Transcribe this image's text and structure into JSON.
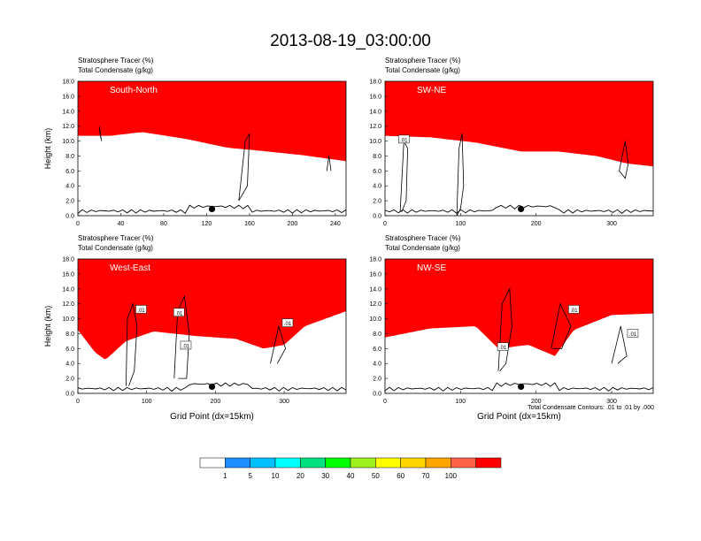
{
  "title": "2013-08-19_03:00:00",
  "colors": {
    "bins": [
      "#ffffff",
      "#1e8fff",
      "#00bfff",
      "#00ffff",
      "#00e07f",
      "#00ff00",
      "#a0f020",
      "#ffff00",
      "#ffd700",
      "#ffa500",
      "#ff6347",
      "#ff0000"
    ],
    "contour": "#000000",
    "terrain": "#000000"
  },
  "colorbar": {
    "labels": [
      "1",
      "5",
      "10",
      "20",
      "30",
      "40",
      "50",
      "60",
      "70",
      "100"
    ]
  },
  "contour_note": "Total Condensate Contours: .01 to .01 by .000",
  "contour_label": ".01",
  "chart_data": [
    {
      "type": "heatmap",
      "panel_label": "South-North",
      "field_title": "Stratosphere Tracer   (%)",
      "contour_title": "Total Condensate   (g/kg)",
      "ylabel": "Height (km)",
      "xlabel": "",
      "ylim": [
        0,
        18
      ],
      "xlim": [
        0,
        250
      ],
      "yticks": [
        "0.0",
        "2.0",
        "4.0",
        "6.0",
        "8.0",
        "10.0",
        "12.0",
        "14.0",
        "16.0",
        "18.0"
      ],
      "xticks": [
        "0",
        "40",
        "80",
        "120",
        "160",
        "200",
        "240"
      ],
      "tracer_base_km": [
        [
          0,
          14.2
        ],
        [
          30,
          14.2
        ],
        [
          60,
          14.7
        ],
        [
          100,
          13.8
        ],
        [
          140,
          12.6
        ],
        [
          170,
          12.2
        ],
        [
          210,
          11.6
        ],
        [
          250,
          10.8
        ]
      ],
      "marker_x": 125,
      "contours": [
        [
          [
            20,
            12
          ],
          [
            22,
            10
          ],
          [
            20,
            11.5
          ]
        ],
        [
          [
            150,
            2
          ],
          [
            156,
            10
          ],
          [
            160,
            11
          ],
          [
            158,
            4
          ],
          [
            154,
            3
          ],
          [
            150,
            2
          ]
        ],
        [
          [
            232,
            6
          ],
          [
            234,
            8
          ],
          [
            236,
            6
          ]
        ]
      ],
      "contour_labels": []
    },
    {
      "type": "heatmap",
      "panel_label": "SW-NE",
      "field_title": "Stratosphere Tracer   (%)",
      "contour_title": "Total Condensate   (g/kg)",
      "ylabel": "",
      "xlabel": "",
      "ylim": [
        0,
        18
      ],
      "xlim": [
        0,
        355
      ],
      "yticks": [
        "0.0",
        "2.0",
        "4.0",
        "6.0",
        "8.0",
        "10.0",
        "12.0",
        "14.0",
        "16.0",
        "18.0"
      ],
      "xticks": [
        "0",
        "100",
        "200",
        "300"
      ],
      "tracer_base_km": [
        [
          0,
          14.2
        ],
        [
          60,
          14
        ],
        [
          120,
          13.3
        ],
        [
          180,
          12.1
        ],
        [
          230,
          12.1
        ],
        [
          280,
          11.5
        ],
        [
          320,
          10.5
        ],
        [
          355,
          10.1
        ]
      ],
      "marker_x": 180,
      "contours": [
        [
          [
            20,
            0.5
          ],
          [
            25,
            10
          ],
          [
            30,
            9
          ],
          [
            28,
            2
          ],
          [
            22,
            0.5
          ]
        ],
        [
          [
            95,
            0
          ],
          [
            98,
            9
          ],
          [
            102,
            11
          ],
          [
            104,
            4
          ],
          [
            100,
            1
          ],
          [
            95,
            0
          ]
        ],
        [
          [
            310,
            6
          ],
          [
            318,
            10
          ],
          [
            322,
            7
          ],
          [
            318,
            5
          ],
          [
            310,
            6
          ]
        ]
      ],
      "contour_labels": [
        {
          "x": 25,
          "y": 10.2
        }
      ]
    },
    {
      "type": "heatmap",
      "panel_label": "West-East",
      "field_title": "Stratosphere Tracer   (%)",
      "contour_title": "Total Condensate   (g/kg)",
      "ylabel": "Height (km)",
      "xlabel": "Grid Point (dx=15km)",
      "ylim": [
        0,
        18
      ],
      "xlim": [
        0,
        390
      ],
      "yticks": [
        "0.0",
        "2.0",
        "4.0",
        "6.0",
        "8.0",
        "10.0",
        "12.0",
        "14.0",
        "16.0",
        "18.0"
      ],
      "xticks": [
        "0",
        "100",
        "200",
        "300"
      ],
      "tracer_base_km": [
        [
          0,
          12
        ],
        [
          25,
          9
        ],
        [
          40,
          8
        ],
        [
          70,
          10.5
        ],
        [
          110,
          11.8
        ],
        [
          170,
          11.2
        ],
        [
          230,
          10.8
        ],
        [
          270,
          9.5
        ],
        [
          300,
          10
        ],
        [
          330,
          12.5
        ],
        [
          390,
          14.5
        ]
      ],
      "marker_x": 195,
      "contours": [
        [
          [
            70,
            1
          ],
          [
            72,
            10
          ],
          [
            80,
            12
          ],
          [
            86,
            9
          ],
          [
            82,
            3
          ],
          [
            74,
            1
          ]
        ],
        [
          [
            140,
            2
          ],
          [
            145,
            11
          ],
          [
            155,
            13
          ],
          [
            162,
            8
          ],
          [
            158,
            2
          ],
          [
            146,
            2
          ]
        ],
        [
          [
            280,
            4
          ],
          [
            292,
            9
          ],
          [
            302,
            6
          ],
          [
            290,
            4
          ]
        ]
      ],
      "contour_labels": [
        {
          "x": 92,
          "y": 11.2
        },
        {
          "x": 147,
          "y": 10.8
        },
        {
          "x": 157,
          "y": 6.4
        },
        {
          "x": 305,
          "y": 9.4
        }
      ]
    },
    {
      "type": "heatmap",
      "panel_label": "NW-SE",
      "field_title": "Stratosphere Tracer   (%)",
      "contour_title": "Total Condensate   (g/kg)",
      "ylabel": "",
      "xlabel": "Grid Point (dx=15km)",
      "ylim": [
        0,
        18
      ],
      "xlim": [
        0,
        355
      ],
      "yticks": [
        "0.0",
        "2.0",
        "4.0",
        "6.0",
        "8.0",
        "10.0",
        "12.0",
        "14.0",
        "16.0",
        "18.0"
      ],
      "xticks": [
        "0",
        "100",
        "200",
        "300"
      ],
      "tracer_base_km": [
        [
          0,
          11
        ],
        [
          60,
          12.2
        ],
        [
          120,
          12.5
        ],
        [
          150,
          9.5
        ],
        [
          190,
          10
        ],
        [
          225,
          8.5
        ],
        [
          250,
          12
        ],
        [
          300,
          14
        ],
        [
          355,
          14.2
        ]
      ],
      "marker_x": 180,
      "contours": [
        [
          [
            150,
            3
          ],
          [
            155,
            12
          ],
          [
            165,
            14
          ],
          [
            168,
            9
          ],
          [
            160,
            4
          ],
          [
            152,
            3
          ]
        ],
        [
          [
            220,
            6
          ],
          [
            232,
            12
          ],
          [
            246,
            9
          ],
          [
            234,
            6
          ],
          [
            222,
            6
          ]
        ],
        [
          [
            300,
            4
          ],
          [
            312,
            9
          ],
          [
            320,
            5
          ],
          [
            308,
            4
          ]
        ]
      ],
      "contour_labels": [
        {
          "x": 156,
          "y": 6.2
        },
        {
          "x": 250,
          "y": 11.2
        },
        {
          "x": 328,
          "y": 8
        }
      ]
    }
  ]
}
